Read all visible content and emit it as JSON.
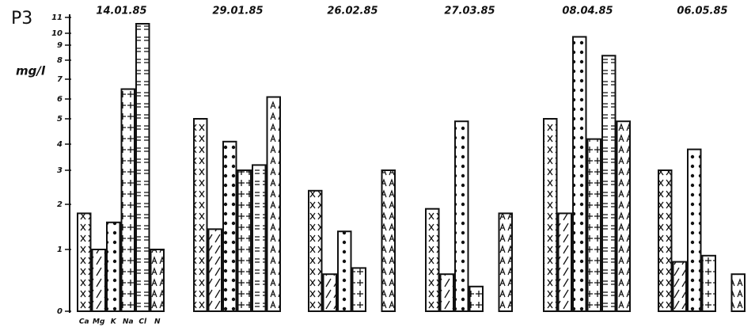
{
  "chart_data": {
    "type": "bar",
    "title": "P3",
    "y_label": "mg/l",
    "categories": [
      "14.01.85",
      "29.01.85",
      "26.02.85",
      "27.03.85",
      "08.04.85",
      "06.05.85"
    ],
    "series": [
      {
        "name": "Ca",
        "color": "#111111",
        "values": [
          1.8,
          5.0,
          2.4,
          1.9,
          5.0,
          3.0
        ]
      },
      {
        "name": "Mg",
        "color": "#111111",
        "values": [
          1.0,
          1.45,
          0.6,
          0.6,
          1.8,
          0.8
        ]
      },
      {
        "name": "K",
        "color": "#111111",
        "values": [
          1.6,
          4.1,
          1.4,
          4.9,
          9.7,
          3.8
        ]
      },
      {
        "name": "Na",
        "color": "#111111",
        "values": [
          6.5,
          3.0,
          0.7,
          0.4,
          4.2,
          0.9
        ]
      },
      {
        "name": "Cl",
        "color": "#111111",
        "values": [
          10.6,
          3.2,
          null,
          null,
          8.3,
          null
        ]
      },
      {
        "name": "N",
        "color": "#111111",
        "values": [
          1.0,
          6.1,
          3.0,
          1.8,
          4.9,
          0.6
        ]
      }
    ],
    "ylim": [
      0,
      11
    ],
    "yticks": [
      0,
      1,
      2,
      3,
      4,
      5,
      6,
      7,
      8,
      9,
      10,
      11
    ]
  }
}
